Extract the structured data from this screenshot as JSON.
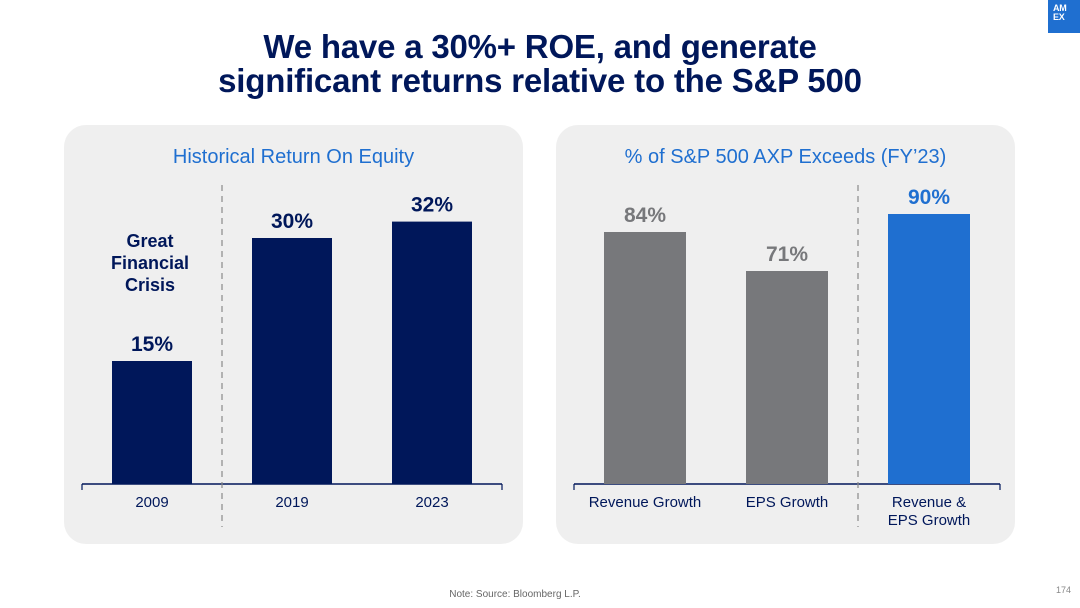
{
  "slide": {
    "title_line1": "We have a 30%+ ROE, and generate",
    "title_line2": "significant returns relative to the S&P 500",
    "logo_line1": "AM",
    "logo_line2": "EX",
    "footnote": "Note: Source: Bloomberg L.P.",
    "page_number": "174"
  },
  "colors": {
    "navy": "#00175a",
    "blue": "#1f6fd0",
    "gray": "#77787b",
    "panel_bg": "#efefef"
  },
  "chart_data": [
    {
      "type": "bar",
      "title": "Historical Return On Equity",
      "categories": [
        "2009",
        "2019",
        "2023"
      ],
      "values": [
        15,
        30,
        32
      ],
      "value_labels": [
        "15%",
        "30%",
        "32%"
      ],
      "ylim": [
        0,
        40
      ],
      "bar_colors": [
        "#00175a",
        "#00175a",
        "#00175a"
      ],
      "annotation": {
        "lines": [
          "Great",
          "Financial",
          "Crisis"
        ]
      },
      "divider_after_index": 0
    },
    {
      "type": "bar",
      "title": "% of S&P 500 AXP Exceeds (FY’23)",
      "categories": [
        "Revenue Growth",
        "EPS Growth",
        "Revenue & EPS Growth"
      ],
      "category_lines": [
        [
          "Revenue Growth"
        ],
        [
          "EPS Growth"
        ],
        [
          "Revenue &",
          "EPS Growth"
        ]
      ],
      "values": [
        84,
        71,
        90
      ],
      "value_labels": [
        "84%",
        "71%",
        "90%"
      ],
      "ylim": [
        0,
        100
      ],
      "bar_colors": [
        "#77787b",
        "#77787b",
        "#1f6fd0"
      ],
      "label_colors": [
        "#77787b",
        "#77787b",
        "#1f6fd0"
      ],
      "divider_after_index": 1
    }
  ]
}
